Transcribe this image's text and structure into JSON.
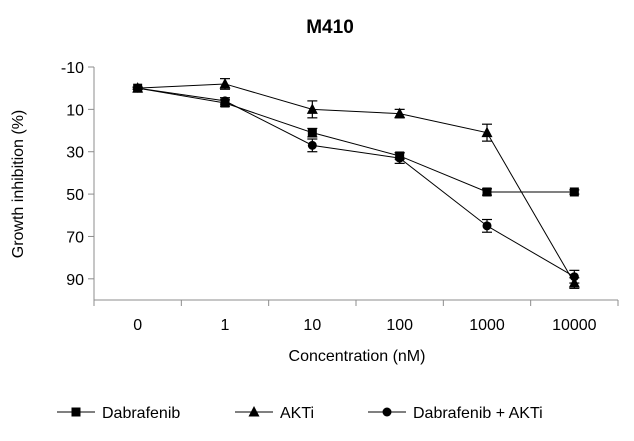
{
  "chart_data": {
    "type": "line",
    "title": "M410",
    "xlabel": "Concentration (nM)",
    "ylabel": "Growth inhibition (%)",
    "categories": [
      "0",
      "1",
      "10",
      "100",
      "1000",
      "10000"
    ],
    "y_ticks": [
      "-10",
      "10",
      "30",
      "50",
      "70",
      "90"
    ],
    "ylim": [
      -10,
      100
    ],
    "y_inverted": true,
    "grid": false,
    "legend_position": "bottom",
    "series": [
      {
        "name": "Dabrafenib",
        "marker": "square",
        "values": [
          0,
          7,
          21,
          32,
          49,
          49
        ],
        "errors": [
          0.5,
          1.5,
          2,
          1.5,
          1.5,
          1
        ]
      },
      {
        "name": "AKTi",
        "marker": "triangle",
        "values": [
          0,
          -2,
          10,
          12,
          21,
          92
        ],
        "errors": [
          0.5,
          2.5,
          4,
          2,
          4,
          2.5
        ]
      },
      {
        "name": "Dabrafenib + AKTi",
        "marker": "circle",
        "values": [
          0,
          6,
          27,
          33,
          65,
          89
        ],
        "errors": [
          0.5,
          1.5,
          3,
          2.5,
          3,
          3
        ]
      }
    ]
  }
}
